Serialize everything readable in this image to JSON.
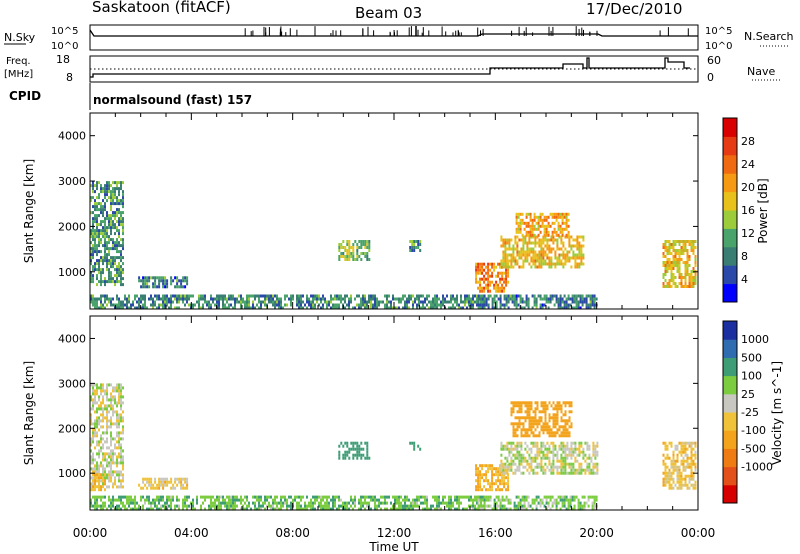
{
  "header": {
    "station": "Saskatoon (fitACF)",
    "beam": "Beam 03",
    "date": "17/Dec/2010"
  },
  "noise_panel": {
    "left_label": "N.Sky",
    "left_ticks": [
      "10^5",
      "10^0"
    ],
    "right_label": "N.Search",
    "right_ticks": [
      "10^5",
      "10^0"
    ]
  },
  "freq_panel": {
    "left_label_1": "Freq.",
    "left_label_2": "[MHz]",
    "left_ticks": [
      "18",
      "8"
    ],
    "right_label": "Nave",
    "right_ticks": [
      "60",
      "0"
    ]
  },
  "cpid": {
    "label": "CPID",
    "value": "normalsound (fast) 157"
  },
  "colors": {
    "power_scale": [
      "#0000ff",
      "#2b49a8",
      "#3a7d73",
      "#49a36a",
      "#9ccc3a",
      "#e8c21a",
      "#f59a12",
      "#ef6a10",
      "#e63a14",
      "#d80000"
    ],
    "velocity_scale": [
      "#1c2fa0",
      "#2f6cb0",
      "#3f9d76",
      "#7bcc3f",
      "#c8c8c0",
      "#efc23a",
      "#f3a31c",
      "#ee7c12",
      "#e4501a",
      "#d60000"
    ]
  },
  "chart_data": [
    {
      "type": "heatmap",
      "title": "",
      "xlabel": "Time UT",
      "ylabel": "Slant Range [km]",
      "x_tick_labels": [
        "00:00",
        "04:00",
        "08:00",
        "12:00",
        "16:00",
        "20:00",
        "00:00"
      ],
      "xlim": [
        0,
        24
      ],
      "ylim": [
        180,
        4500
      ],
      "y_tick_labels": [
        "1000",
        "2000",
        "3000",
        "4000"
      ],
      "colorbar_label": "Power [dB]",
      "colorbar_ticks": [
        "4",
        "8",
        "12",
        "16",
        "20",
        "24",
        "28"
      ],
      "clim": [
        0,
        32
      ],
      "regions": [
        {
          "t": [
            0.0,
            1.3
          ],
          "r": [
            700,
            3000
          ],
          "level": 10
        },
        {
          "t": [
            1.9,
            3.8
          ],
          "r": [
            650,
            900
          ],
          "level": 8
        },
        {
          "t": [
            0.0,
            15.5
          ],
          "r": [
            200,
            500
          ],
          "level": 9
        },
        {
          "t": [
            9.8,
            11.0
          ],
          "r": [
            1300,
            1700
          ],
          "level": 14
        },
        {
          "t": [
            12.6,
            13.0
          ],
          "r": [
            1500,
            1700
          ],
          "level": 10
        },
        {
          "t": [
            15.2,
            16.5
          ],
          "r": [
            600,
            1200
          ],
          "level": 22
        },
        {
          "t": [
            16.2,
            19.5
          ],
          "r": [
            1100,
            1800
          ],
          "level": 18
        },
        {
          "t": [
            16.8,
            18.9
          ],
          "r": [
            1800,
            2300
          ],
          "level": 20
        },
        {
          "t": [
            15.3,
            20.0
          ],
          "r": [
            200,
            500
          ],
          "level": 8
        },
        {
          "t": [
            22.6,
            23.9
          ],
          "r": [
            650,
            1700
          ],
          "level": 18
        }
      ]
    },
    {
      "type": "heatmap",
      "title": "",
      "xlabel": "Time UT",
      "ylabel": "Slant Range [km]",
      "x_tick_labels": [
        "00:00",
        "04:00",
        "08:00",
        "12:00",
        "16:00",
        "20:00",
        "00:00"
      ],
      "xlim": [
        0,
        24
      ],
      "ylim": [
        180,
        4500
      ],
      "y_tick_labels": [
        "1000",
        "2000",
        "3000",
        "4000"
      ],
      "colorbar_label": "Velocity [m s^-1]",
      "colorbar_ticks": [
        "1000",
        "500",
        "100",
        "25",
        "-25",
        "-100",
        "-500",
        "-1000"
      ],
      "regions": [
        {
          "t": [
            0.0,
            1.3
          ],
          "r": [
            700,
            3000
          ],
          "velocity": 0
        },
        {
          "t": [
            0.0,
            0.6
          ],
          "r": [
            600,
            1000
          ],
          "velocity": -100
        },
        {
          "t": [
            1.9,
            3.8
          ],
          "r": [
            650,
            900
          ],
          "velocity": -50
        },
        {
          "t": [
            0.0,
            15.5
          ],
          "r": [
            200,
            500
          ],
          "velocity": 80
        },
        {
          "t": [
            9.8,
            11.0
          ],
          "r": [
            1300,
            1700
          ],
          "velocity": 300
        },
        {
          "t": [
            12.6,
            13.0
          ],
          "r": [
            1500,
            1700
          ],
          "velocity": 200
        },
        {
          "t": [
            15.2,
            16.5
          ],
          "r": [
            600,
            1200
          ],
          "velocity": -100
        },
        {
          "t": [
            16.2,
            20.0
          ],
          "r": [
            1000,
            1700
          ],
          "velocity": 0
        },
        {
          "t": [
            16.6,
            19.0
          ],
          "r": [
            1800,
            2600
          ],
          "velocity": -200
        },
        {
          "t": [
            15.3,
            20.0
          ],
          "r": [
            200,
            500
          ],
          "velocity": 60
        },
        {
          "t": [
            22.6,
            23.9
          ],
          "r": [
            650,
            1700
          ],
          "velocity": -60
        }
      ]
    }
  ]
}
